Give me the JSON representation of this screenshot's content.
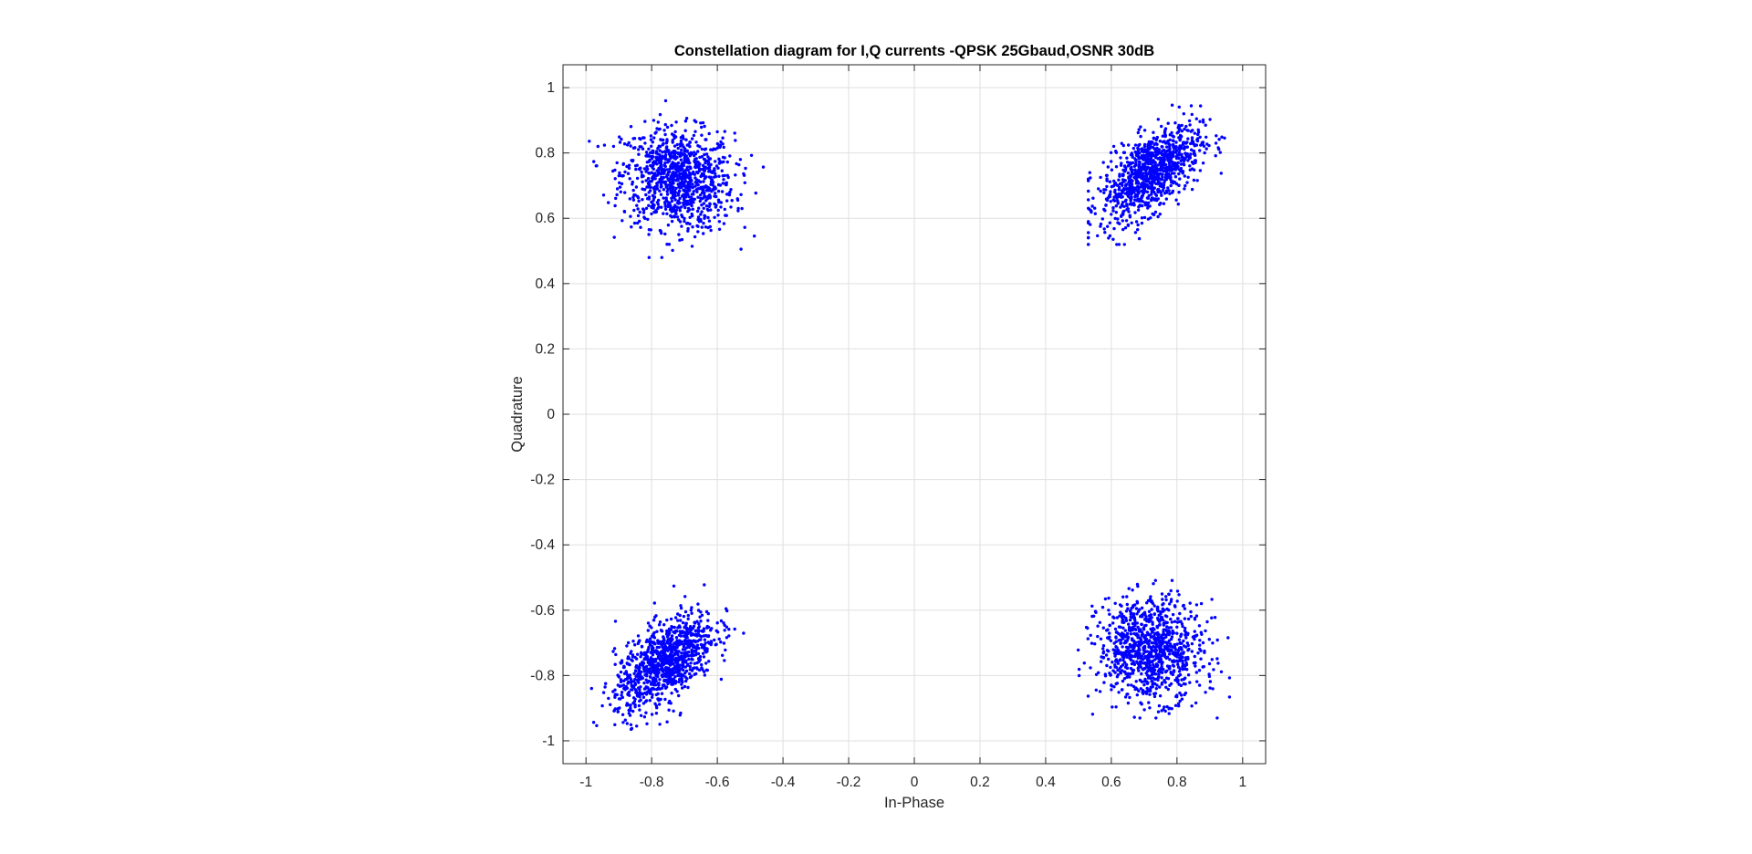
{
  "chart_data": {
    "type": "scatter",
    "title": "Constellation diagram for I,Q currents -QPSK 25Gbaud,OSNR 30dB",
    "xlabel": "In-Phase",
    "ylabel": "Quadrature",
    "xlim": [
      -1.07,
      1.07
    ],
    "ylim": [
      -1.07,
      1.07
    ],
    "xticks": [
      -1,
      -0.8,
      -0.6,
      -0.4,
      -0.2,
      0,
      0.2,
      0.4,
      0.6,
      0.8,
      1
    ],
    "yticks": [
      -1,
      -0.8,
      -0.6,
      -0.4,
      -0.2,
      0,
      0.2,
      0.4,
      0.6,
      0.8,
      1
    ],
    "xtick_labels": [
      "-1",
      "-0.8",
      "-0.6",
      "-0.4",
      "-0.2",
      "0",
      "0.2",
      "0.4",
      "0.6",
      "0.8",
      "1"
    ],
    "ytick_labels": [
      "-1",
      "-0.8",
      "-0.6",
      "-0.4",
      "-0.2",
      "0",
      "0.2",
      "0.4",
      "0.6",
      "0.8",
      "1"
    ],
    "grid": true,
    "marker_color": "#0000ff",
    "clusters": [
      {
        "center": [
          -0.72,
          0.72
        ],
        "x_range": [
          -0.99,
          -0.46
        ],
        "y_range": [
          0.48,
          0.96
        ],
        "correlation": -0.1,
        "approx_points": 1000
      },
      {
        "center": [
          0.72,
          0.74
        ],
        "x_range": [
          0.53,
          1.0
        ],
        "y_range": [
          0.52,
          0.97
        ],
        "correlation": 0.6,
        "approx_points": 1000
      },
      {
        "center": [
          -0.76,
          -0.76
        ],
        "x_range": [
          -0.99,
          -0.52
        ],
        "y_range": [
          -0.99,
          -0.52
        ],
        "correlation": 0.6,
        "approx_points": 1000
      },
      {
        "center": [
          0.72,
          -0.72
        ],
        "x_range": [
          0.47,
          0.96
        ],
        "y_range": [
          -0.93,
          -0.45
        ],
        "correlation": -0.05,
        "approx_points": 1000
      }
    ]
  }
}
